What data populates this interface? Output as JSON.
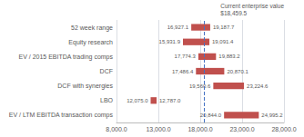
{
  "chart_data": {
    "type": "bar",
    "orientation": "horizontal",
    "categories": [
      "EV / LTM EBITDA transaction comps",
      "LBO",
      "DCF with synergies",
      "DCF",
      "EV / 2015 EBITDA trading comps",
      "Equity research",
      "52 week range"
    ],
    "low_values": [
      20844.0,
      12075.0,
      19560.6,
      17486.4,
      17774.3,
      15931.9,
      16927.1
    ],
    "high_values": [
      24995.2,
      12787.0,
      23224.6,
      20870.1,
      19883.2,
      19091.4,
      19187.7
    ],
    "low_labels": [
      "20,844.0",
      "12,075.0",
      "19,560.6",
      "17,486.4",
      "17,774.3",
      "15,931.9",
      "16,927.1"
    ],
    "high_labels": [
      "24,995.2",
      "12,787.0",
      "23,224.6",
      "20,870.1",
      "19,883.2",
      "19,091.4",
      "19,187.7"
    ],
    "data_labels": true,
    "color": "#c0504d",
    "xlim": [
      8000,
      28000
    ],
    "xticks": [
      {
        "value": 8000,
        "label": "8,000.0"
      },
      {
        "value": 13000,
        "label": "13,000.0"
      },
      {
        "value": 18000,
        "label": "18,000.0"
      },
      {
        "value": 23000,
        "label": "23,000.0"
      },
      {
        "value": 28000,
        "label": "28,000.0"
      }
    ],
    "grid": true,
    "reference_line": {
      "value": 18459.5,
      "color": "#4472c4",
      "line_style": "dashed"
    },
    "annotation": "Current enterprise value\n$18,459.5"
  }
}
